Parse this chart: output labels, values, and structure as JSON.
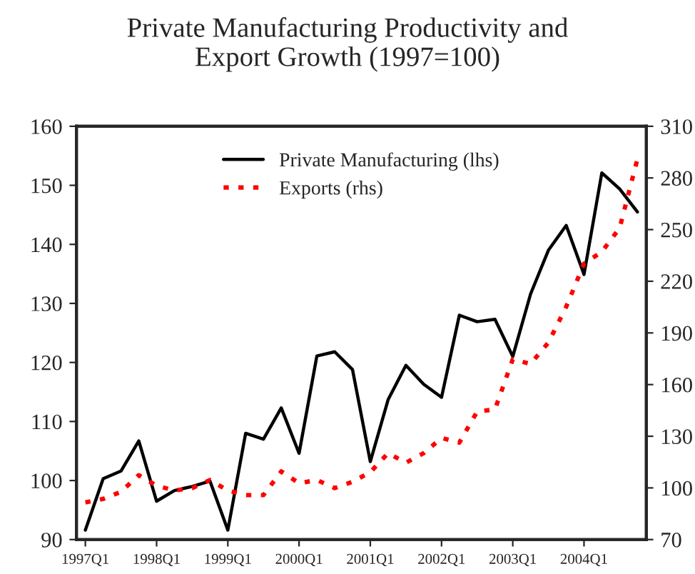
{
  "chart_data": {
    "type": "line",
    "title": "Private Manufacturing Productivity and\nExport Growth (1997=100)",
    "categories": [
      "1997Q1",
      null,
      null,
      null,
      "1998Q1",
      null,
      null,
      null,
      "1999Q1",
      null,
      null,
      null,
      "2000Q1",
      null,
      null,
      null,
      "2001Q1",
      null,
      null,
      null,
      "2002Q1",
      null,
      null,
      null,
      "2003Q1",
      null,
      null,
      null,
      "2004Q1",
      null,
      null,
      null
    ],
    "series": [
      {
        "name": "Private Manufacturing (lhs)",
        "color": "#000000",
        "line_style": "solid",
        "values": [
          91.6,
          100.3,
          101.6,
          106.7,
          96.5,
          98.3,
          99.0,
          99.9,
          91.6,
          108.0,
          107.0,
          112.3,
          104.6,
          121.1,
          121.8,
          118.8,
          103.2,
          113.7,
          119.5,
          116.3,
          114.1,
          128.0,
          126.9,
          127.3,
          121.0,
          131.6,
          139.0,
          143.2,
          134.9,
          152.1,
          149.4,
          145.5
        ]
      },
      {
        "name": "Exports (rhs)",
        "color": "#ff0000",
        "line_style": "dotted",
        "axis": "y2",
        "values": [
          91.6,
          93.6,
          97.7,
          107.4,
          101.3,
          98.5,
          99.9,
          104.6,
          98.5,
          95.8,
          95.8,
          109.6,
          102.7,
          104.6,
          99.9,
          103.5,
          109.1,
          120.2,
          114.6,
          120.2,
          129.0,
          126.3,
          144.3,
          145.6,
          174.7,
          172.0,
          184.4,
          205.2,
          230.2,
          237.1,
          250.9,
          291.1
        ]
      }
    ],
    "ylim": [
      90,
      160
    ],
    "yticks": [
      90,
      100,
      110,
      120,
      130,
      140,
      150,
      160
    ],
    "y2lim": [
      70,
      310
    ],
    "y2ticks": [
      70,
      100,
      130,
      160,
      190,
      220,
      250,
      280,
      310
    ],
    "grid": false,
    "legend": "top",
    "marker": "none"
  }
}
